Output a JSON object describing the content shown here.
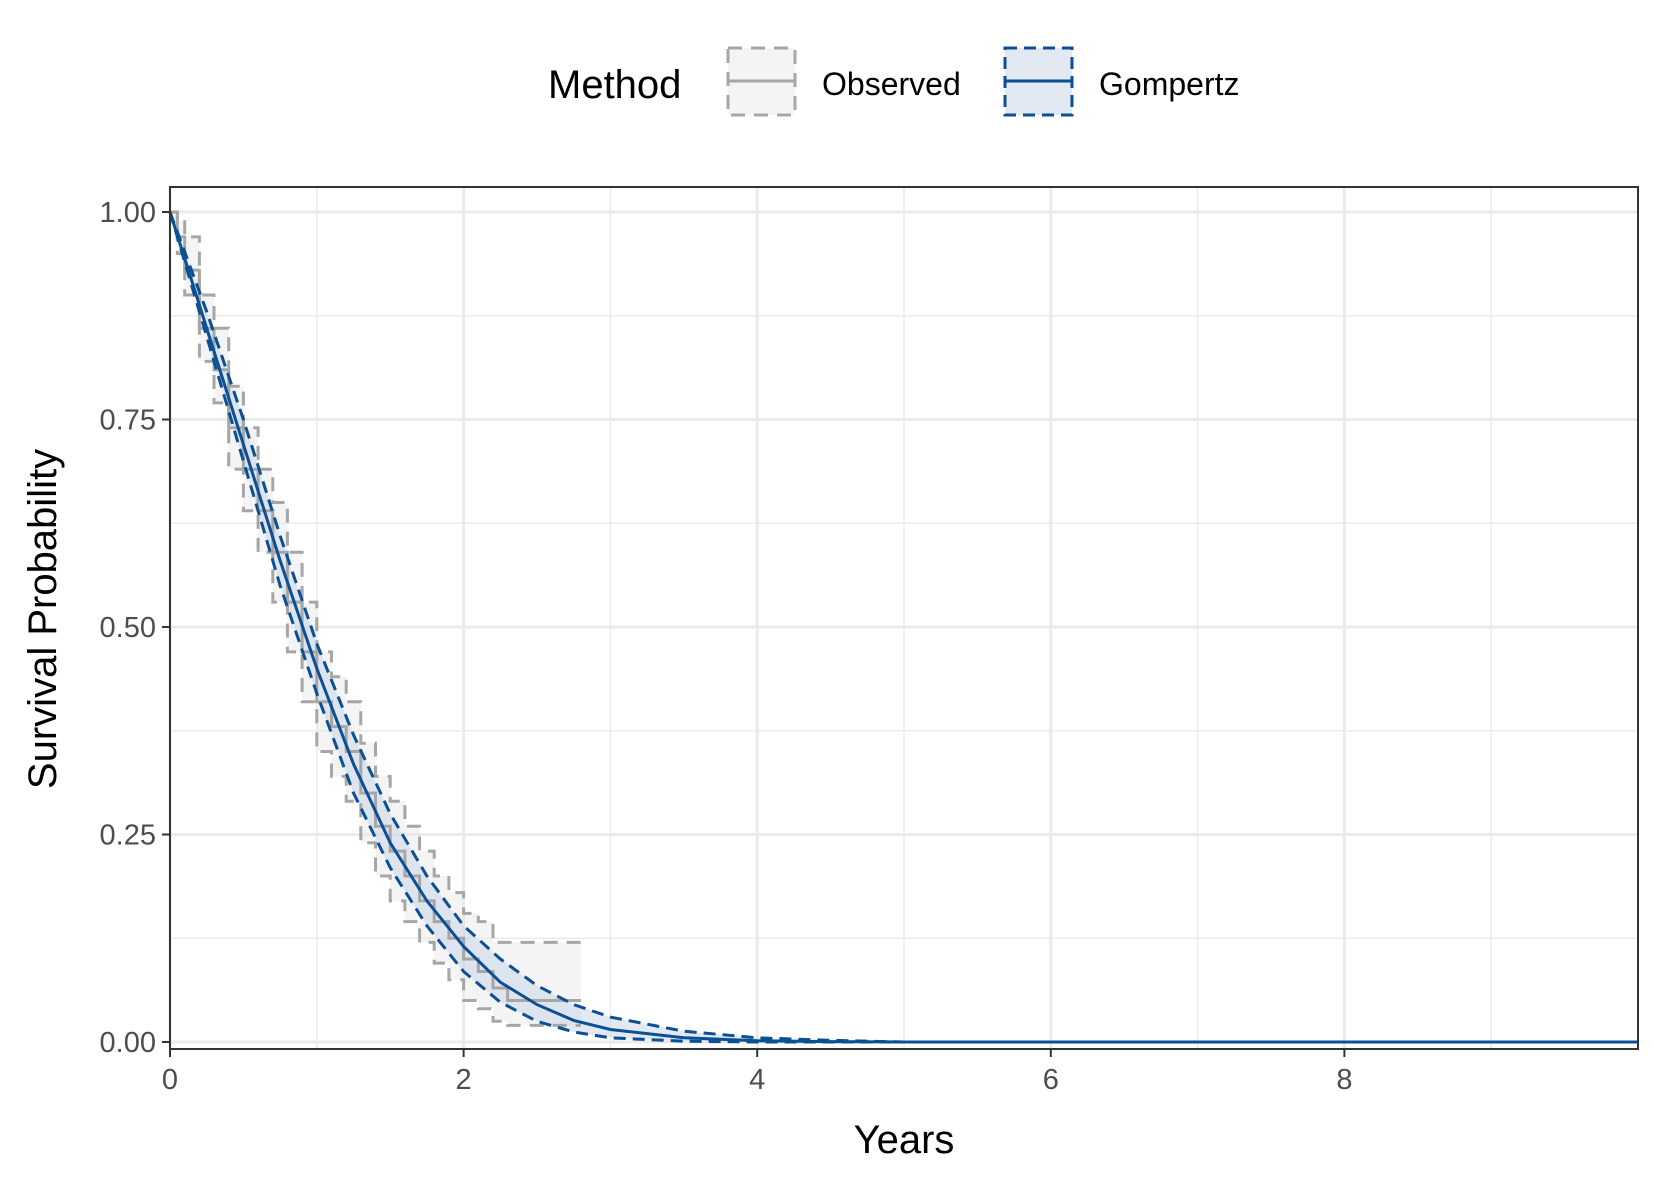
{
  "chart_data": {
    "type": "line",
    "xlabel": "Years",
    "ylabel": "Survival Probability",
    "xlim": [
      0,
      10
    ],
    "ylim": [
      0,
      1
    ],
    "x_ticks": [
      0,
      2,
      4,
      6,
      8
    ],
    "x_tick_labels": [
      "0",
      "2",
      "4",
      "6",
      "8"
    ],
    "y_ticks": [
      0,
      0.25,
      0.5,
      0.75,
      1.0
    ],
    "y_tick_labels": [
      "0.00",
      "0.25",
      "0.50",
      "0.75",
      "1.00"
    ],
    "grid": true,
    "legend": {
      "title": "Method",
      "position": "top",
      "entries": [
        "Observed",
        "Gompertz"
      ]
    },
    "colors": {
      "observed": "#a6a6a6",
      "observed_fill": "#e6e6e6",
      "gompertz": "#0b4f95",
      "gompertz_fill": "#c7d3e6",
      "grid": "#ebebeb",
      "panel_border": "#333333"
    },
    "series": [
      {
        "name": "Observed",
        "style": "step",
        "x": [
          0,
          0.05,
          0.1,
          0.2,
          0.3,
          0.4,
          0.5,
          0.6,
          0.7,
          0.8,
          0.9,
          1.0,
          1.1,
          1.2,
          1.3,
          1.4,
          1.5,
          1.6,
          1.7,
          1.8,
          1.9,
          2.0,
          2.1,
          2.2,
          2.3,
          2.8
        ],
        "y": [
          1.0,
          0.97,
          0.93,
          0.86,
          0.81,
          0.74,
          0.69,
          0.64,
          0.59,
          0.53,
          0.47,
          0.41,
          0.38,
          0.35,
          0.3,
          0.26,
          0.23,
          0.2,
          0.17,
          0.145,
          0.125,
          0.1,
          0.085,
          0.065,
          0.05,
          0.05
        ],
        "lower": [
          1.0,
          0.95,
          0.9,
          0.82,
          0.77,
          0.69,
          0.64,
          0.59,
          0.53,
          0.47,
          0.41,
          0.35,
          0.32,
          0.29,
          0.24,
          0.2,
          0.17,
          0.145,
          0.12,
          0.095,
          0.075,
          0.05,
          0.04,
          0.025,
          0.02,
          0.02
        ],
        "upper": [
          1.0,
          0.99,
          0.97,
          0.9,
          0.86,
          0.79,
          0.74,
          0.69,
          0.65,
          0.59,
          0.53,
          0.47,
          0.44,
          0.41,
          0.36,
          0.32,
          0.29,
          0.26,
          0.23,
          0.2,
          0.18,
          0.155,
          0.145,
          0.12,
          0.12,
          0.12
        ]
      },
      {
        "name": "Gompertz",
        "style": "smooth",
        "x": [
          0,
          0.25,
          0.5,
          0.75,
          1.0,
          1.25,
          1.5,
          1.75,
          2.0,
          2.25,
          2.5,
          2.75,
          3.0,
          3.5,
          4.0,
          4.5,
          5.0,
          10.0
        ],
        "y": [
          1.0,
          0.86,
          0.72,
          0.58,
          0.45,
          0.335,
          0.24,
          0.17,
          0.115,
          0.072,
          0.045,
          0.026,
          0.015,
          0.005,
          0.0015,
          0.0005,
          0.0,
          0.0
        ],
        "lower": [
          1.0,
          0.85,
          0.7,
          0.55,
          0.42,
          0.3,
          0.21,
          0.14,
          0.085,
          0.048,
          0.025,
          0.012,
          0.005,
          0.001,
          0.0,
          0.0,
          0.0,
          0.0
        ],
        "upper": [
          1.0,
          0.88,
          0.75,
          0.61,
          0.48,
          0.37,
          0.275,
          0.2,
          0.14,
          0.1,
          0.068,
          0.045,
          0.03,
          0.013,
          0.005,
          0.002,
          0.0,
          0.0
        ]
      }
    ]
  }
}
